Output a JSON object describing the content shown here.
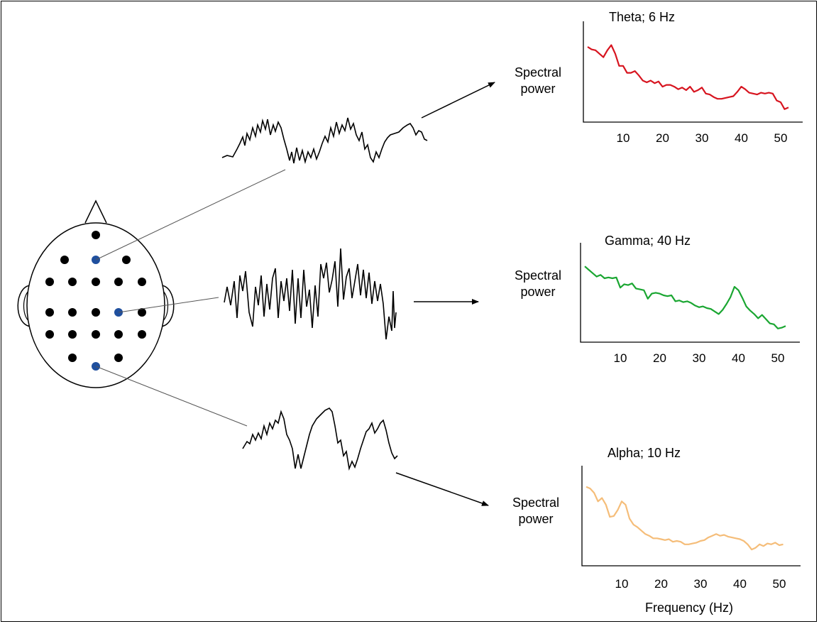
{
  "panels": [
    {
      "id": "theta",
      "title": "Theta; 6 Hz",
      "ylabel_line1": "Spectral",
      "ylabel_line2": "power",
      "color": "#d7141f",
      "ticks": [
        "10",
        "20",
        "30",
        "40",
        "50"
      ],
      "spectrum": [
        [
          1,
          0.82
        ],
        [
          2,
          0.79
        ],
        [
          3,
          0.78
        ],
        [
          4,
          0.74
        ],
        [
          5,
          0.7
        ],
        [
          6,
          0.78
        ],
        [
          7,
          0.84
        ],
        [
          8,
          0.74
        ],
        [
          9,
          0.6
        ],
        [
          10,
          0.6
        ],
        [
          11,
          0.52
        ],
        [
          12,
          0.52
        ],
        [
          13,
          0.54
        ],
        [
          14,
          0.49
        ],
        [
          15,
          0.43
        ],
        [
          16,
          0.41
        ],
        [
          17,
          0.43
        ],
        [
          18,
          0.4
        ],
        [
          19,
          0.42
        ],
        [
          20,
          0.36
        ],
        [
          21,
          0.38
        ],
        [
          22,
          0.38
        ],
        [
          23,
          0.36
        ],
        [
          24,
          0.33
        ],
        [
          25,
          0.35
        ],
        [
          26,
          0.32
        ],
        [
          27,
          0.36
        ],
        [
          28,
          0.3
        ],
        [
          29,
          0.32
        ],
        [
          30,
          0.35
        ],
        [
          31,
          0.28
        ],
        [
          32,
          0.27
        ],
        [
          33,
          0.24
        ],
        [
          34,
          0.22
        ],
        [
          35,
          0.22
        ],
        [
          36,
          0.23
        ],
        [
          37,
          0.24
        ],
        [
          38,
          0.25
        ],
        [
          39,
          0.3
        ],
        [
          40,
          0.36
        ],
        [
          41,
          0.33
        ],
        [
          42,
          0.29
        ],
        [
          43,
          0.28
        ],
        [
          44,
          0.27
        ],
        [
          45,
          0.29
        ],
        [
          46,
          0.28
        ],
        [
          47,
          0.29
        ],
        [
          48,
          0.28
        ],
        [
          49,
          0.2
        ],
        [
          50,
          0.18
        ],
        [
          51,
          0.1
        ],
        [
          52,
          0.12
        ]
      ]
    },
    {
      "id": "gamma",
      "title": "Gamma; 40 Hz",
      "ylabel_line1": "Spectral",
      "ylabel_line2": "power",
      "color": "#1aa631",
      "ticks": [
        "10",
        "20",
        "30",
        "40",
        "50"
      ],
      "spectrum": [
        [
          1,
          0.84
        ],
        [
          2,
          0.8
        ],
        [
          3,
          0.76
        ],
        [
          4,
          0.72
        ],
        [
          5,
          0.74
        ],
        [
          6,
          0.7
        ],
        [
          7,
          0.71
        ],
        [
          8,
          0.7
        ],
        [
          9,
          0.71
        ],
        [
          10,
          0.59
        ],
        [
          11,
          0.63
        ],
        [
          12,
          0.62
        ],
        [
          13,
          0.64
        ],
        [
          14,
          0.58
        ],
        [
          15,
          0.57
        ],
        [
          16,
          0.56
        ],
        [
          17,
          0.46
        ],
        [
          18,
          0.52
        ],
        [
          19,
          0.53
        ],
        [
          20,
          0.52
        ],
        [
          21,
          0.5
        ],
        [
          22,
          0.49
        ],
        [
          23,
          0.5
        ],
        [
          24,
          0.43
        ],
        [
          25,
          0.44
        ],
        [
          26,
          0.42
        ],
        [
          27,
          0.43
        ],
        [
          28,
          0.41
        ],
        [
          29,
          0.38
        ],
        [
          30,
          0.36
        ],
        [
          31,
          0.37
        ],
        [
          32,
          0.35
        ],
        [
          33,
          0.34
        ],
        [
          34,
          0.31
        ],
        [
          35,
          0.28
        ],
        [
          36,
          0.33
        ],
        [
          37,
          0.4
        ],
        [
          38,
          0.48
        ],
        [
          39,
          0.6
        ],
        [
          40,
          0.56
        ],
        [
          41,
          0.47
        ],
        [
          42,
          0.37
        ],
        [
          43,
          0.32
        ],
        [
          44,
          0.28
        ],
        [
          45,
          0.23
        ],
        [
          46,
          0.27
        ],
        [
          47,
          0.22
        ],
        [
          48,
          0.17
        ],
        [
          49,
          0.16
        ],
        [
          50,
          0.11
        ],
        [
          51,
          0.12
        ],
        [
          52,
          0.14
        ]
      ]
    },
    {
      "id": "alpha",
      "title": "Alpha; 10 Hz",
      "ylabel_line1": "Spectral",
      "ylabel_line2": "power",
      "color": "#f5bd79",
      "ticks": [
        "10",
        "20",
        "30",
        "40",
        "50"
      ],
      "spectrum": [
        [
          1,
          0.87
        ],
        [
          2,
          0.85
        ],
        [
          3,
          0.8
        ],
        [
          4,
          0.7
        ],
        [
          5,
          0.74
        ],
        [
          6,
          0.66
        ],
        [
          7,
          0.52
        ],
        [
          8,
          0.53
        ],
        [
          9,
          0.6
        ],
        [
          10,
          0.7
        ],
        [
          11,
          0.66
        ],
        [
          12,
          0.5
        ],
        [
          13,
          0.43
        ],
        [
          14,
          0.4
        ],
        [
          15,
          0.36
        ],
        [
          16,
          0.32
        ],
        [
          17,
          0.3
        ],
        [
          18,
          0.27
        ],
        [
          19,
          0.27
        ],
        [
          20,
          0.26
        ],
        [
          21,
          0.25
        ],
        [
          22,
          0.26
        ],
        [
          23,
          0.23
        ],
        [
          24,
          0.24
        ],
        [
          25,
          0.23
        ],
        [
          26,
          0.2
        ],
        [
          27,
          0.2
        ],
        [
          28,
          0.21
        ],
        [
          29,
          0.22
        ],
        [
          30,
          0.24
        ],
        [
          31,
          0.25
        ],
        [
          32,
          0.28
        ],
        [
          33,
          0.3
        ],
        [
          34,
          0.32
        ],
        [
          35,
          0.3
        ],
        [
          36,
          0.31
        ],
        [
          37,
          0.29
        ],
        [
          38,
          0.28
        ],
        [
          39,
          0.27
        ],
        [
          40,
          0.26
        ],
        [
          41,
          0.24
        ],
        [
          42,
          0.2
        ],
        [
          43,
          0.14
        ],
        [
          44,
          0.16
        ],
        [
          45,
          0.2
        ],
        [
          46,
          0.18
        ],
        [
          47,
          0.21
        ],
        [
          48,
          0.2
        ],
        [
          49,
          0.22
        ],
        [
          50,
          0.19
        ],
        [
          51,
          0.2
        ]
      ]
    }
  ],
  "xlabel": "Frequency (Hz)",
  "electrodes_highlight_color": "#1f4f9e",
  "electrode_color": "#000000"
}
